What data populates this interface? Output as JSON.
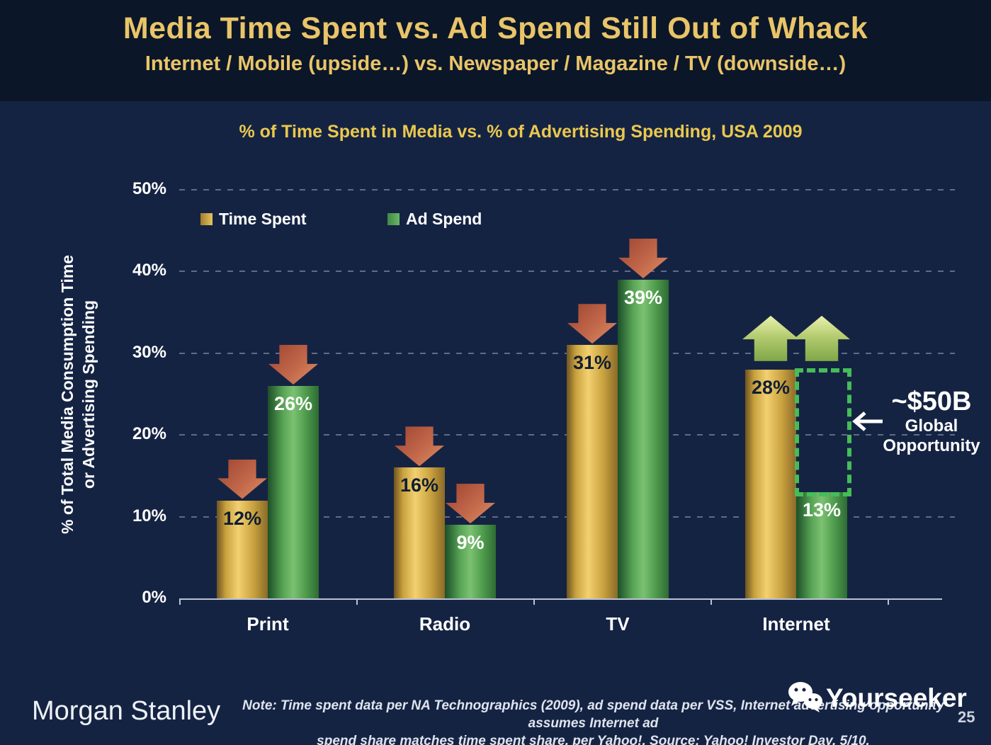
{
  "header": {
    "title": "Media Time Spent vs. Ad Spend Still Out of Whack",
    "subtitle": "Internet / Mobile (upside…) vs. Newspaper / Magazine / TV (downside…)"
  },
  "chart_data": {
    "type": "bar",
    "title": "% of Time Spent in Media vs. % of Advertising Spending, USA 2009",
    "categories": [
      "Print",
      "Radio",
      "TV",
      "Internet"
    ],
    "series": [
      {
        "name": "Time Spent",
        "values": [
          12,
          16,
          31,
          28
        ],
        "color": "#d2a645",
        "label_color": "#101d33"
      },
      {
        "name": "Ad Spend",
        "values": [
          26,
          9,
          39,
          13
        ],
        "color": "#5aa85b",
        "label_color": "#ffffff"
      }
    ],
    "ylabel_line1": "% of Total Media Consumption Time",
    "ylabel_line2": "or Advertising Spending",
    "ylim": [
      0,
      50
    ],
    "yticks": [
      "0%",
      "10%",
      "20%",
      "30%",
      "40%",
      "50%"
    ],
    "grid": "horizontal-dashed",
    "legend_position": "top-left-inside",
    "annotations": {
      "down_arrow_categories": [
        "Print",
        "Radio",
        "TV"
      ],
      "up_arrow_categories": [
        "Internet"
      ],
      "opportunity": {
        "category": "Internet",
        "label": "~$50B",
        "line1": "Global",
        "line2": "Opportunity"
      }
    }
  },
  "footer": {
    "brand": "Morgan Stanley",
    "note_line1": "Note: Time spent data per NA Technographics (2009), ad spend data per VSS, Internet advertising opportunity assumes Internet ad",
    "note_line2": "spend share matches time spent share, per Yahoo!. Source: Yahoo! Investor Day, 5/10.",
    "watermark": "Yourseeker",
    "page_number": "25"
  },
  "colors": {
    "header_bg": "#0b1728",
    "body_bg": "#152343",
    "title_gold": "#e9c469",
    "chart_title_gold": "#eac84e",
    "bar_gold": "#d2a645",
    "bar_green": "#5aa85b",
    "down_arrow": "#c2674a",
    "up_arrow": "#a8c167",
    "opportunity_dotted": "#45bd58",
    "gridline": "#aab6c9"
  }
}
